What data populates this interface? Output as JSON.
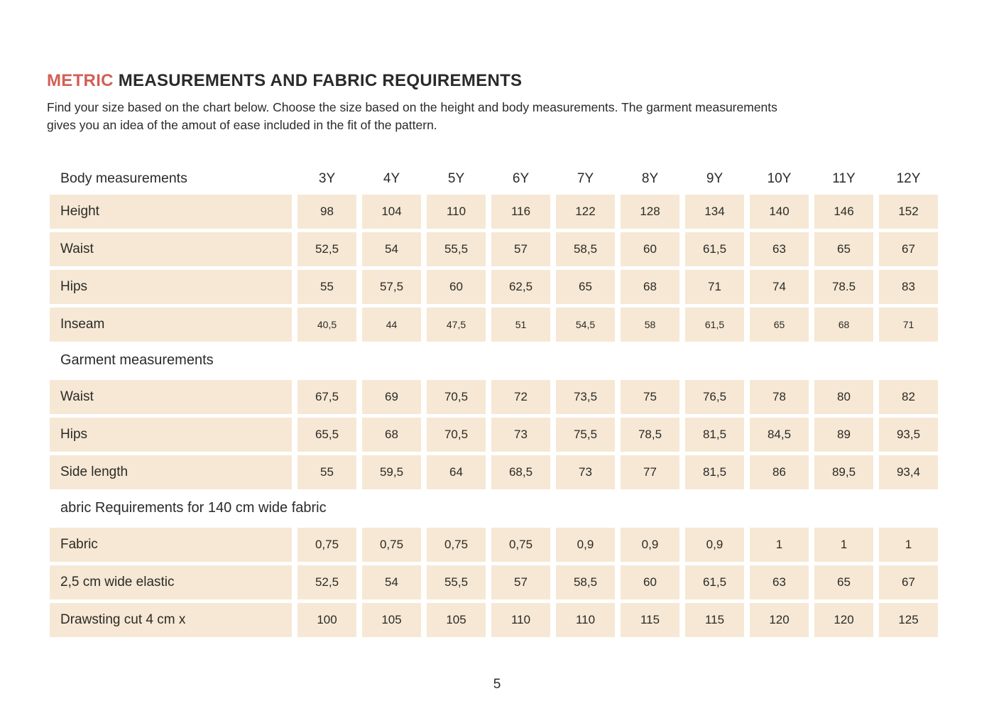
{
  "colors": {
    "accent": "#d25f56",
    "cell_bg": "#f6e8d4",
    "text": "#2b2a28"
  },
  "title": {
    "highlight": "METRIC",
    "rest": "MEASUREMENTS AND FABRIC REQUIREMENTS"
  },
  "intro": {
    "line1": "Find your size based on the chart below. Choose the size based on the height and body measurements. The garment measurements",
    "line2": "gives you an idea of the amout of ease included in the fit of the pattern."
  },
  "table": {
    "header": {
      "label": "Body measurements",
      "sizes": [
        "3Y",
        "4Y",
        "5Y",
        "6Y",
        "7Y",
        "8Y",
        "9Y",
        "10Y",
        "11Y",
        "12Y"
      ]
    },
    "sections": [
      {
        "heading": null,
        "rows": [
          {
            "label": "Height",
            "small": false,
            "values": [
              "98",
              "104",
              "110",
              "116",
              "122",
              "128",
              "134",
              "140",
              "146",
              "152"
            ]
          },
          {
            "label": "Waist",
            "small": false,
            "values": [
              "52,5",
              "54",
              "55,5",
              "57",
              "58,5",
              "60",
              "61,5",
              "63",
              "65",
              "67"
            ]
          },
          {
            "label": "Hips",
            "small": false,
            "values": [
              "55",
              "57,5",
              "60",
              "62,5",
              "65",
              "68",
              "71",
              "74",
              "78.5",
              "83"
            ]
          },
          {
            "label": "Inseam",
            "small": true,
            "values": [
              "40,5",
              "44",
              "47,5",
              "51",
              "54,5",
              "58",
              "61,5",
              "65",
              "68",
              "71"
            ]
          }
        ]
      },
      {
        "heading": "Garment measurements",
        "rows": [
          {
            "label": "Waist",
            "small": false,
            "values": [
              "67,5",
              "69",
              "70,5",
              "72",
              "73,5",
              "75",
              "76,5",
              "78",
              "80",
              "82"
            ]
          },
          {
            "label": "Hips",
            "small": false,
            "values": [
              "65,5",
              "68",
              "70,5",
              "73",
              "75,5",
              "78,5",
              "81,5",
              "84,5",
              "89",
              "93,5"
            ]
          },
          {
            "label": "Side length",
            "small": false,
            "values": [
              "55",
              "59,5",
              "64",
              "68,5",
              "73",
              "77",
              "81,5",
              "86",
              "89,5",
              "93,4"
            ]
          }
        ]
      },
      {
        "heading": "abric Requirements for 140 cm wide fabric",
        "rows": [
          {
            "label": "Fabric",
            "small": false,
            "values": [
              "0,75",
              "0,75",
              "0,75",
              "0,75",
              "0,9",
              "0,9",
              "0,9",
              "1",
              "1",
              "1"
            ]
          },
          {
            "label": "2,5 cm wide elastic",
            "small": false,
            "values": [
              "52,5",
              "54",
              "55,5",
              "57",
              "58,5",
              "60",
              "61,5",
              "63",
              "65",
              "67"
            ]
          },
          {
            "label": "Drawsting cut 4 cm x",
            "small": false,
            "values": [
              "100",
              "105",
              "105",
              "110",
              "110",
              "115",
              "115",
              "120",
              "120",
              "125"
            ]
          }
        ]
      }
    ]
  },
  "page": {
    "number": "5"
  }
}
